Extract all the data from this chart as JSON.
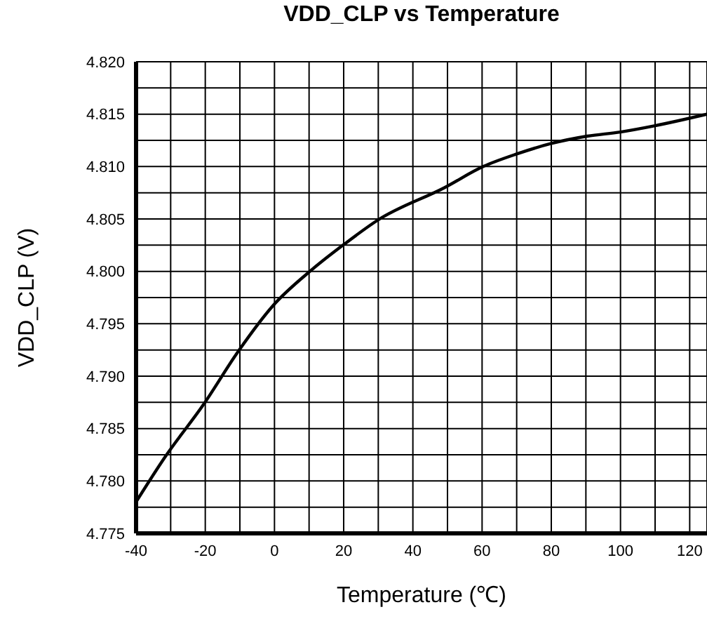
{
  "chart_data": {
    "type": "line",
    "title": "VDD_CLP vs Temperature",
    "xlabel": "Temperature (℃)",
    "ylabel": "VDD_CLP (V)",
    "x": [
      -40,
      -31.6,
      -20.5,
      -10.2,
      -0.5,
      10.6,
      20.2,
      29.9,
      49.2,
      60.3,
      70,
      80,
      90.4,
      100,
      110,
      125
    ],
    "series": [
      {
        "color": "#000000",
        "values": [
          4.778,
          4.7823,
          4.7873,
          4.7925,
          4.7967,
          4.8001,
          4.8026,
          4.8049,
          4.808,
          4.81,
          4.8112,
          4.8122,
          4.8129,
          4.8133,
          4.8139,
          4.815
        ]
      }
    ],
    "xlim": [
      -40,
      125
    ],
    "xticks": [
      -40,
      {
        "value": -30,
        "label": null
      },
      -20,
      {
        "value": -10,
        "label": null
      },
      0,
      {
        "value": 10,
        "label": null
      },
      20,
      {
        "value": 30,
        "label": null
      },
      40,
      {
        "value": 50,
        "label": null
      },
      60,
      {
        "value": 70,
        "label": null
      },
      80,
      {
        "value": 90,
        "label": null
      },
      100,
      {
        "value": 110,
        "label": null
      },
      120
    ],
    "ylim": [
      4.775,
      4.82
    ],
    "yticks": [
      {
        "value": 4.775,
        "label": "4.775"
      },
      {
        "value": 4.7775,
        "label": null
      },
      {
        "value": 4.78,
        "label": "4.780"
      },
      {
        "value": 4.7825,
        "label": null
      },
      {
        "value": 4.785,
        "label": "4.785"
      },
      {
        "value": 4.7875,
        "label": null
      },
      {
        "value": 4.79,
        "label": "4.790"
      },
      {
        "value": 4.7925,
        "label": null
      },
      {
        "value": 4.795,
        "label": "4.795"
      },
      {
        "value": 4.7975,
        "label": null
      },
      {
        "value": 4.8,
        "label": "4.800"
      },
      {
        "value": 4.8025,
        "label": null
      },
      {
        "value": 4.805,
        "label": "4.805"
      },
      {
        "value": 4.8075,
        "label": null
      },
      {
        "value": 4.81,
        "label": "4.810"
      },
      {
        "value": 4.8125,
        "label": null
      },
      {
        "value": 4.815,
        "label": "4.815"
      },
      {
        "value": 4.8175,
        "label": null
      },
      {
        "value": 4.82,
        "label": "4.820"
      }
    ],
    "grid": true,
    "legend": false,
    "marker": "none",
    "line_style": "solid"
  }
}
